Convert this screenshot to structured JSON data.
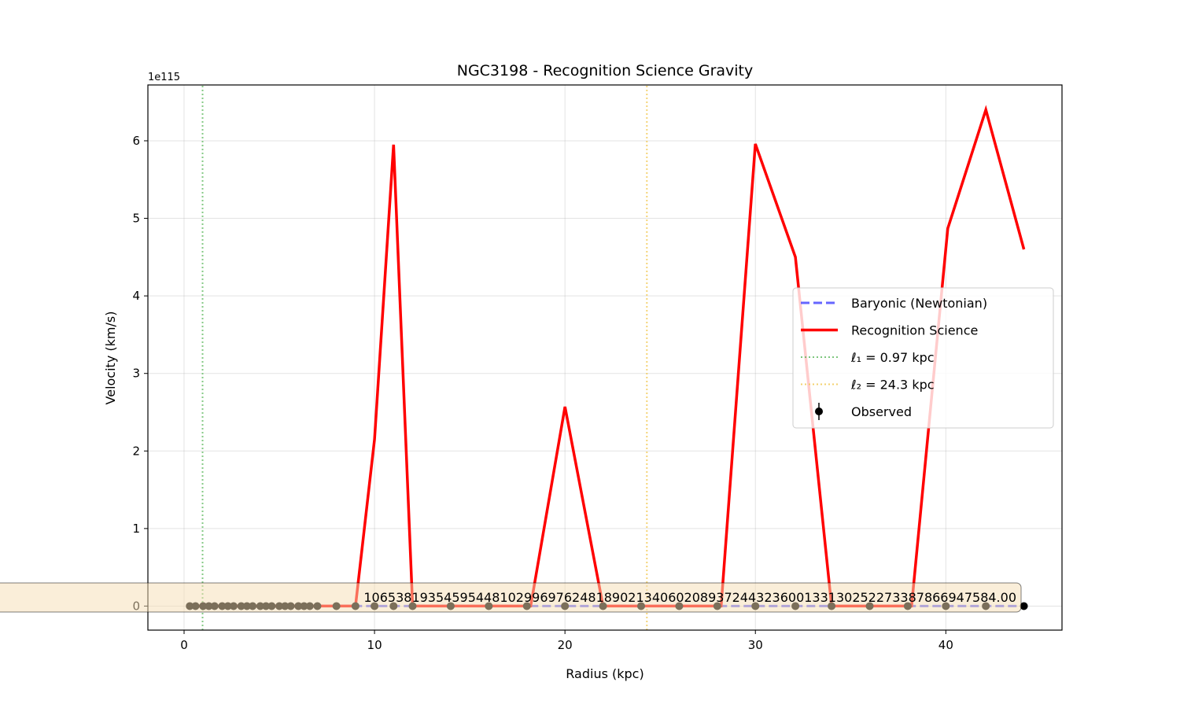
{
  "chart_data": {
    "type": "line",
    "title": "NGC3198 - Recognition Science Gravity",
    "xlabel": "Radius (kpc)",
    "ylabel": "Velocity (km/s)",
    "y_offset_label": "1e115",
    "xlim": [
      -1.9,
      46.1
    ],
    "ylim": [
      -0.31,
      6.72
    ],
    "xticks": [
      0,
      10,
      20,
      30,
      40
    ],
    "yticks": [
      0,
      1,
      2,
      3,
      4,
      5,
      6
    ],
    "grid": true,
    "legend_position": "center-right",
    "series": [
      {
        "name": "Baryonic (Newtonian)",
        "style": "dashed",
        "color": "#4040ff",
        "x": [
          0.3,
          44.1
        ],
        "y": [
          0,
          0
        ]
      },
      {
        "name": "Recognition Science",
        "style": "solid",
        "color": "#ff0000",
        "x": [
          0.3,
          7.0,
          9.0,
          10.0,
          11.0,
          12.0,
          18.2,
          20.0,
          22.0,
          28.2,
          30.0,
          32.1,
          34.0,
          38.2,
          40.1,
          42.1,
          44.1
        ],
        "y": [
          0,
          0,
          0,
          2.15,
          5.95,
          0,
          0,
          2.57,
          0,
          0,
          5.96,
          4.5,
          0,
          0,
          4.87,
          6.4,
          4.6
        ]
      },
      {
        "name": "ℓ₁ = 0.97 kpc",
        "style": "dotted",
        "color": "#5cb85c",
        "x": [
          0.97,
          0.97
        ],
        "y": [
          -0.31,
          6.72
        ]
      },
      {
        "name": "ℓ₂ = 24.3 kpc",
        "style": "dotted",
        "color": "#f0c64a",
        "x": [
          24.3,
          24.3
        ],
        "y": [
          -0.31,
          6.72
        ]
      },
      {
        "name": "Observed",
        "style": "markers",
        "color": "#000000",
        "x": [
          0.3,
          0.6,
          1.0,
          1.3,
          1.6,
          2.0,
          2.3,
          2.6,
          3.0,
          3.3,
          3.6,
          4.0,
          4.3,
          4.6,
          5.0,
          5.3,
          5.6,
          6.0,
          6.3,
          6.6,
          7.0,
          8.0,
          9.0,
          10.0,
          11.0,
          12.0,
          14.0,
          16.0,
          18.0,
          20.0,
          22.0,
          24.0,
          26.0,
          28.0,
          30.0,
          32.1,
          34.0,
          36.0,
          38.0,
          40.0,
          42.1,
          44.1
        ],
        "y": [
          0,
          0,
          0,
          0,
          0,
          0,
          0,
          0,
          0,
          0,
          0,
          0,
          0,
          0,
          0,
          0,
          0,
          0,
          0,
          0,
          0,
          0,
          0,
          0,
          0,
          0,
          0,
          0,
          0,
          0,
          0,
          0,
          0,
          0,
          0,
          0,
          0,
          0,
          0,
          0,
          0,
          0
        ]
      }
    ],
    "annotation": "106538193545954481029969762481890213406020893724432360013313025227338786694758​4.00"
  }
}
